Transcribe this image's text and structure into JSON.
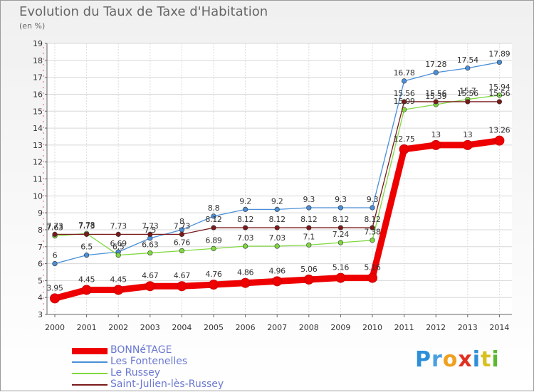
{
  "header": {
    "title": "Evolution du Taux de Taxe d'Habitation",
    "subtitle": "(en %)"
  },
  "brand": {
    "letters": [
      "P",
      "r",
      "o",
      "x",
      "i",
      "t",
      "i"
    ],
    "colors": [
      "#2e8fd8",
      "#4aa0e0",
      "#f0a020",
      "#e03020",
      "#2e8fd8",
      "#d8c020",
      "#5cb830"
    ]
  },
  "chart_data": {
    "type": "line",
    "title": "Evolution du Taux de Taxe d'Habitation",
    "subtitle": "(en %)",
    "x": [
      "2000",
      "2001",
      "2002",
      "2003",
      "2004",
      "2005",
      "2006",
      "2007",
      "2008",
      "2009",
      "2010",
      "2011",
      "2012",
      "2013",
      "2014"
    ],
    "ylim": [
      3,
      19
    ],
    "yticks": [
      3,
      4,
      5,
      6,
      7,
      8,
      9,
      10,
      11,
      12,
      13,
      14,
      15,
      16,
      17,
      18,
      19
    ],
    "grid": true,
    "legend_position": "bottom-left",
    "series": [
      {
        "name": "BONNéTAGE",
        "color": "#ee0000",
        "values": [
          3.95,
          4.45,
          4.45,
          4.67,
          4.67,
          4.76,
          4.86,
          4.96,
          5.06,
          5.16,
          5.16,
          12.75,
          13,
          13,
          13.26
        ],
        "labels": [
          "3.95",
          "4.45",
          "4.45",
          "4.67",
          "4.67",
          "4.76",
          "4.86",
          "4.96",
          "5.06",
          "5.16",
          "5.16",
          "12.75",
          "13",
          "13",
          "13.26"
        ]
      },
      {
        "name": "Les Fontenelles",
        "color": "#4a8fd8",
        "values": [
          6,
          6.5,
          6.69,
          7.5,
          8,
          8.8,
          9.2,
          9.2,
          9.3,
          9.3,
          9.3,
          16.78,
          17.28,
          17.54,
          17.89
        ],
        "labels": [
          "6",
          "6.5",
          "6.69",
          "7.5",
          "8",
          "8.8",
          "9.2",
          "9.2",
          "9.3",
          "9.3",
          "9.3",
          "16.78",
          "17.28",
          "17.54",
          "17.89"
        ]
      },
      {
        "name": "Le Russey",
        "color": "#7fd840",
        "values": [
          7.63,
          7.78,
          6.5,
          6.63,
          6.76,
          6.89,
          7.03,
          7.03,
          7.1,
          7.24,
          7.38,
          15.09,
          15.39,
          15.7,
          15.94
        ],
        "labels": [
          "7.63",
          "7.78",
          "6.5",
          "6.63",
          "6.76",
          "6.89",
          "7.03",
          "7.03",
          "7.1",
          "7.24",
          "7.38",
          "15.09",
          "15.39",
          "15.7",
          "15.94"
        ]
      },
      {
        "name": "Saint-Julien-lès-Russey",
        "color": "#7a1a1a",
        "values": [
          7.73,
          7.73,
          7.73,
          7.73,
          7.73,
          8.12,
          8.12,
          8.12,
          8.12,
          8.12,
          8.12,
          15.56,
          15.56,
          15.56,
          15.56
        ],
        "labels": [
          "7.73",
          "7.73",
          "7.73",
          "7.73",
          "7.73",
          "8.12",
          "8.12",
          "8.12",
          "8.12",
          "8.12",
          "8.12",
          "15.56",
          "15.56",
          "15.56",
          "15.56"
        ]
      }
    ]
  }
}
